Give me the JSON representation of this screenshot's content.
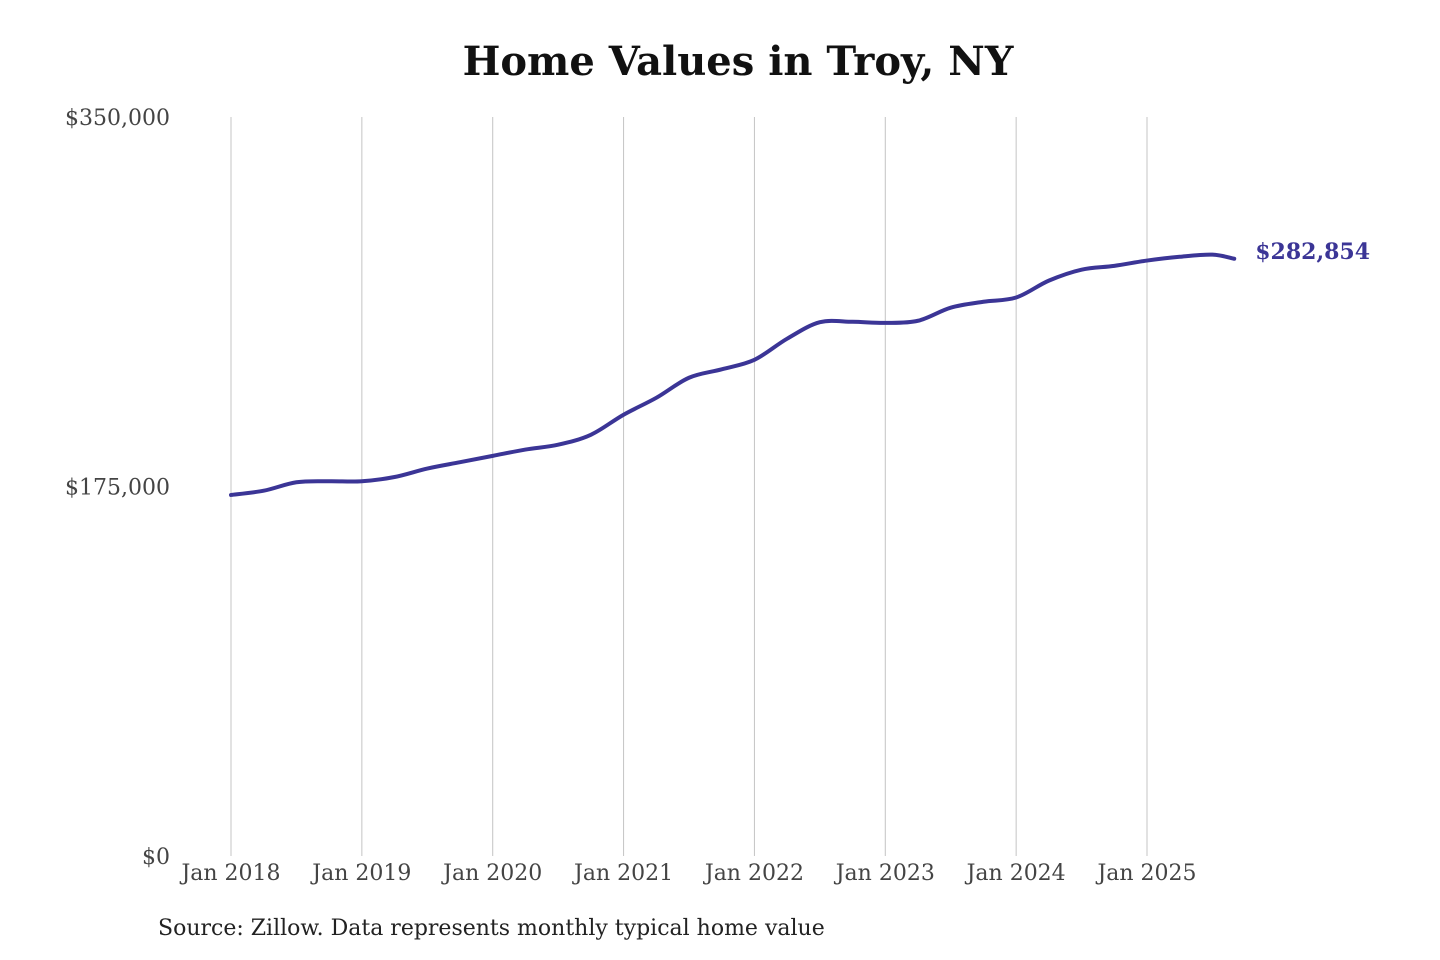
{
  "chart_data": {
    "type": "line",
    "title": "Home Values in Troy, NY",
    "xlabel": "",
    "ylabel": "",
    "ylim": [
      0,
      350000
    ],
    "y_ticks": [
      {
        "value": 0,
        "label": "$0"
      },
      {
        "value": 175000,
        "label": "$175,000"
      },
      {
        "value": 350000,
        "label": "$350,000"
      }
    ],
    "x_ticks": [
      {
        "value": "2018-01",
        "label": "Jan 2018"
      },
      {
        "value": "2019-01",
        "label": "Jan 2019"
      },
      {
        "value": "2020-01",
        "label": "Jan 2020"
      },
      {
        "value": "2021-01",
        "label": "Jan 2021"
      },
      {
        "value": "2022-01",
        "label": "Jan 2022"
      },
      {
        "value": "2023-01",
        "label": "Jan 2023"
      },
      {
        "value": "2024-01",
        "label": "Jan 2024"
      },
      {
        "value": "2025-01",
        "label": "Jan 2025"
      }
    ],
    "grid": "vertical",
    "series": [
      {
        "color": "#3b3596",
        "x": [
          "2018-01",
          "2018-04",
          "2018-07",
          "2018-10",
          "2019-01",
          "2019-04",
          "2019-07",
          "2019-10",
          "2020-01",
          "2020-04",
          "2020-07",
          "2020-10",
          "2021-01",
          "2021-04",
          "2021-07",
          "2021-10",
          "2022-01",
          "2022-04",
          "2022-07",
          "2022-10",
          "2023-01",
          "2023-04",
          "2023-07",
          "2023-10",
          "2024-01",
          "2024-04",
          "2024-07",
          "2024-10",
          "2025-01",
          "2025-04",
          "2025-07",
          "2025-09"
        ],
        "values": [
          171000,
          173000,
          177000,
          177500,
          177500,
          179500,
          183500,
          186500,
          189500,
          192500,
          194800,
          199500,
          209000,
          217000,
          226500,
          230500,
          235000,
          245000,
          252800,
          253000,
          252500,
          253500,
          259700,
          262500,
          264500,
          272500,
          277700,
          279500,
          282000,
          283800,
          284800,
          282854
        ]
      }
    ],
    "end_label": "$282,854",
    "annotation_value": 282854
  },
  "footer": {
    "source": "Source: Zillow. Data represents monthly typical home value"
  }
}
